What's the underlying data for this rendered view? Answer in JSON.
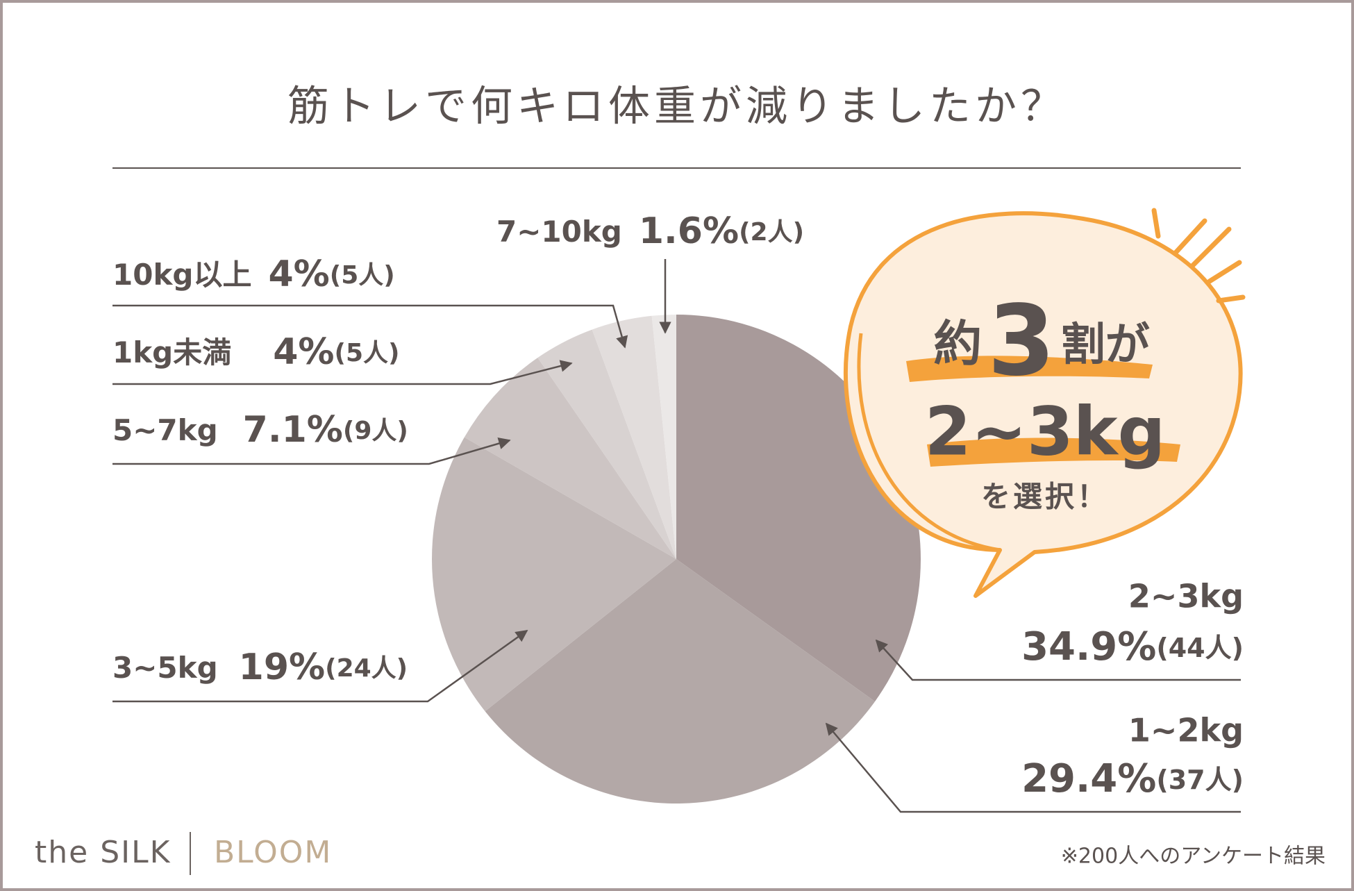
{
  "chart_data": {
    "type": "pie",
    "title": "筋トレで何キロ体重が減りましたか？",
    "categories": [
      "2~3kg",
      "1~2kg",
      "3~5kg",
      "5~7kg",
      "1kg未満",
      "10kg以上",
      "7~10kg"
    ],
    "values": [
      34.9,
      29.4,
      19,
      7.1,
      4,
      4,
      1.6
    ],
    "value_labels": [
      "34.9%",
      "29.4%",
      "19%",
      "7.1%",
      "4%",
      "4%",
      "1.6%"
    ],
    "count_labels": [
      "(44人)",
      "(37人)",
      "(24人)",
      "(9人)",
      "(5人)",
      "(5人)",
      "(2人)"
    ],
    "colors": [
      "#a89a9a",
      "#b3a8a7",
      "#c2b9b8",
      "#cdc5c4",
      "#d8d2d1",
      "#e2dddc",
      "#ebe8e7"
    ]
  },
  "callout": [
    "約",
    "3",
    "割が",
    "2~3kg",
    "を選択！"
  ],
  "note": "※200人へのアンケート結果",
  "brand": [
    "the SILK",
    "BLOOM"
  ]
}
